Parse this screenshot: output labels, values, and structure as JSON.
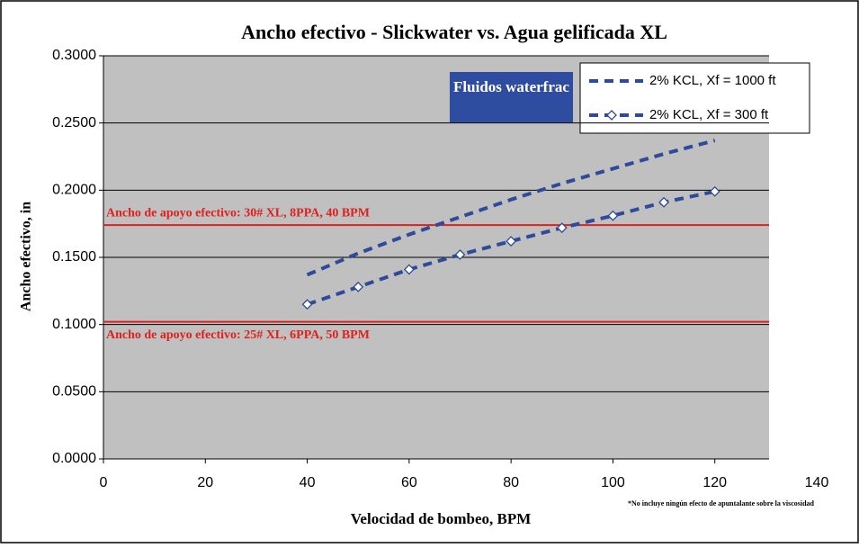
{
  "chart_data": {
    "type": "line",
    "title": "Ancho efectivo - Slickwater vs. Agua gelificada XL",
    "xlabel": "Velocidad de bombeo, BPM",
    "ylabel": "Ancho efectivo, in",
    "x": [
      40,
      50,
      60,
      70,
      80,
      90,
      100,
      110,
      120
    ],
    "series": [
      {
        "name": "2% KCL, Xf = 1000 ft",
        "color": "#2e4a9a",
        "marker": "none",
        "values": [
          0.137,
          0.153,
          0.167,
          0.18,
          0.193,
          0.205,
          0.216,
          0.227,
          0.237
        ]
      },
      {
        "name": "2% KCL, Xf = 300 ft",
        "color": "#2e4a9a",
        "marker": "diamond",
        "values": [
          0.115,
          0.128,
          0.141,
          0.152,
          0.162,
          0.172,
          0.181,
          0.191,
          0.199
        ]
      }
    ],
    "xlim": [
      0,
      140
    ],
    "xticks": [
      0,
      20,
      40,
      60,
      80,
      100,
      120,
      140
    ],
    "ylim": [
      0,
      0.3
    ],
    "yticks": [
      {
        "value": 0,
        "label": "0.0000"
      },
      {
        "value": 0.05,
        "label": "0.0500"
      },
      {
        "value": 0.1,
        "label": "0.1000"
      },
      {
        "value": 0.15,
        "label": "0.1500"
      },
      {
        "value": 0.2,
        "label": "0.2000"
      },
      {
        "value": 0.25,
        "label": "0.2500"
      },
      {
        "value": 0.3,
        "label": "0.3000"
      }
    ],
    "grid": true,
    "reference_lines": [
      {
        "value": 0.174,
        "label": "Ancho de apoyo efectivo: 30# XL, 8PPA, 40 BPM",
        "color": "#e0201c"
      },
      {
        "value": 0.102,
        "label": "Ancho de apoyo efectivo: 25# XL, 6PPA, 50 BPM",
        "color": "#e0201c"
      }
    ],
    "box_label": "Fluidos waterfrac",
    "footnote": "*No incluye ningún efecto de apuntalante sobre la viscosidad",
    "legend": "top-right"
  }
}
